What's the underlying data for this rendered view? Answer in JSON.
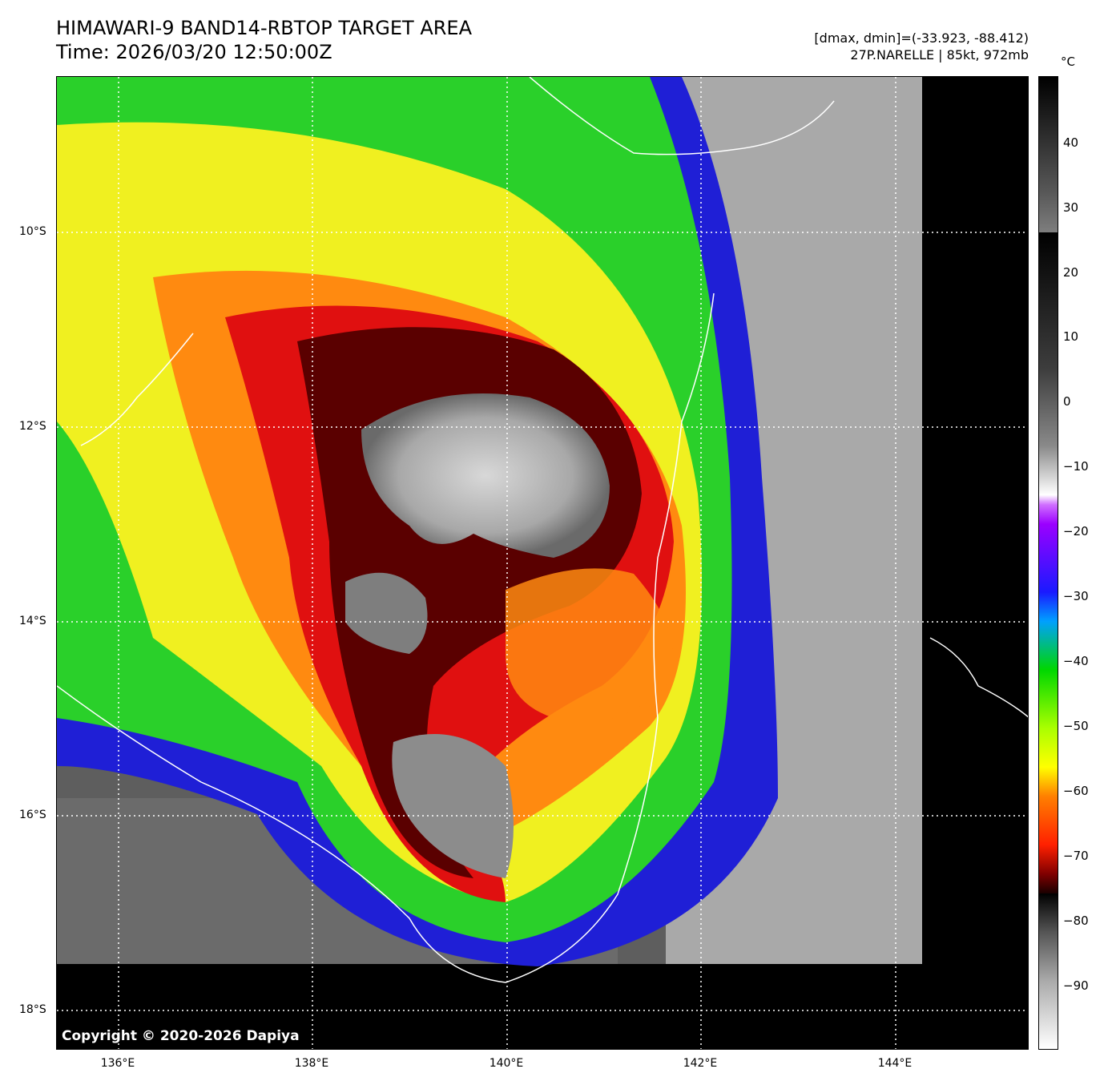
{
  "header": {
    "title_line1": "HIMAWARI-9 BAND14-RBTOP TARGET AREA",
    "title_line2": "Time: 2026/03/20 12:50:00Z",
    "info_line1": "[dmax, dmin]=(-33.923, -88.412)",
    "info_line2": "27P.NARELLE | 85kt, 972mb"
  },
  "map": {
    "copyright": "Copyright © 2020-2026 Dapiya",
    "lat_labels": [
      "10°S",
      "12°S",
      "14°S",
      "16°S",
      "18°S"
    ],
    "lon_labels": [
      "136°E",
      "138°E",
      "140°E",
      "142°E",
      "144°E"
    ]
  },
  "colorbar": {
    "unit": "°C",
    "ticks": [
      "40",
      "30",
      "20",
      "10",
      "0",
      "−10",
      "−20",
      "−30",
      "−40",
      "−50",
      "−60",
      "−70",
      "−80",
      "−90"
    ]
  }
}
